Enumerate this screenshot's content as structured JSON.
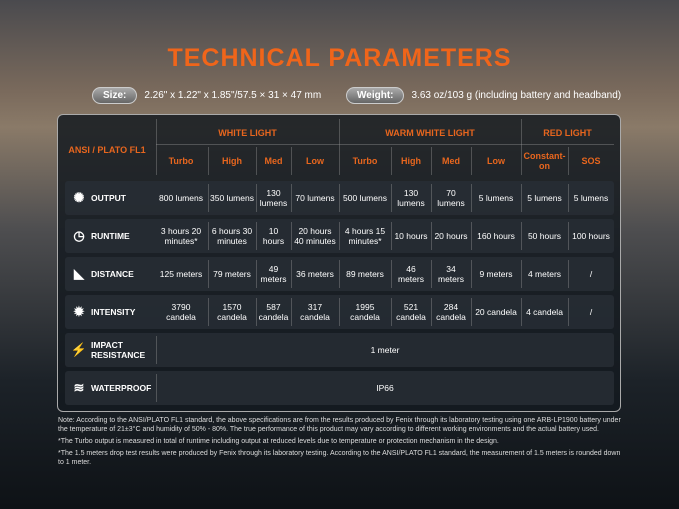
{
  "title": "TECHNICAL PARAMETERS",
  "size": {
    "label": "Size:",
    "value": "2.26\" x 1.22\" x 1.85\"/57.5 × 31 × 47 mm"
  },
  "weight": {
    "label": "Weight:",
    "value": "3.63 oz/103 g (including battery and headband)"
  },
  "table": {
    "corner": "ANSI / PLATO FL1",
    "groups": [
      "WHITE LIGHT",
      "WARM WHITE LIGHT",
      "RED LIGHT"
    ],
    "modes": [
      "Turbo",
      "High",
      "Med",
      "Low",
      "Turbo",
      "High",
      "Med",
      "Low",
      "Constant-on",
      "SOS"
    ],
    "rows": [
      {
        "label": "OUTPUT",
        "icon": "output-icon",
        "values": [
          "800 lumens",
          "350 lumens",
          "130 lumens",
          "70 lumens",
          "500 lumens",
          "130 lumens",
          "70 lumens",
          "5 lumens",
          "5 lumens",
          "5 lumens"
        ]
      },
      {
        "label": "RUNTIME",
        "icon": "clock-icon",
        "values": [
          "3 hours 20 minutes*",
          "6 hours 30 minutes",
          "10 hours",
          "20 hours 40 minutes",
          "4 hours 15 minutes*",
          "10 hours",
          "20 hours",
          "160 hours",
          "50 hours",
          "100 hours"
        ]
      },
      {
        "label": "DISTANCE",
        "icon": "beam-distance-icon",
        "values": [
          "125 meters",
          "79 meters",
          "49 meters",
          "36 meters",
          "89 meters",
          "46 meters",
          "34 meters",
          "9 meters",
          "4 meters",
          "/"
        ]
      },
      {
        "label": "INTENSITY",
        "icon": "intensity-icon",
        "values": [
          "3790 candela",
          "1570 candela",
          "587 candela",
          "317 candela",
          "1995 candela",
          "521 candela",
          "284 candela",
          "20 candela",
          "4 candela",
          "/"
        ]
      }
    ],
    "impact": {
      "label": "IMPACT RESISTANCE",
      "icon": "impact-icon",
      "value": "1 meter"
    },
    "waterproof": {
      "label": "WATERPROOF",
      "icon": "waterproof-icon",
      "value": "IP66"
    }
  },
  "notes": [
    "Note: According to the ANSI/PLATO FL1 standard, the above specifications are from the results produced by Fenix through its laboratory testing using one ARB-LP1900 battery under the temperature of 21±3°C and humidity of 50% - 80%. The true performance of this product may vary according to different working environments and the actual battery used.",
    "*The Turbo output is measured in total of runtime including output at reduced levels due to temperature or protection mechanism in the design.",
    "*The 1.5 meters drop test results were produced by Fenix through its laboratory testing. According to the ANSI/PLATO FL1 standard, the measurement of 1.5 meters is rounded down to 1 meter."
  ]
}
